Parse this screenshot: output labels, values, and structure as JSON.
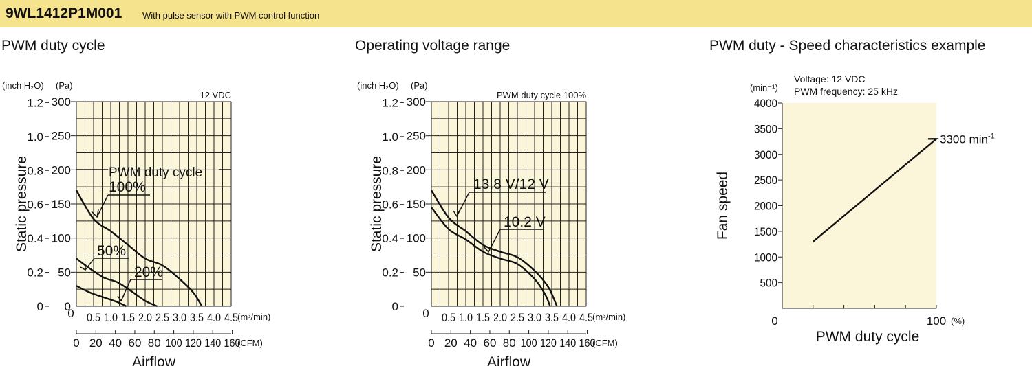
{
  "header": {
    "model": "9WL1412P1M001",
    "description": "With pulse sensor with PWM control function",
    "bg_color": "#f6e38e"
  },
  "chart_data": [
    {
      "type": "line",
      "title": "PWM duty cycle",
      "condition": "12 VDC",
      "ylabel": "Static pressure",
      "xlabel": "Airflow",
      "y_unit_secondary": "(inch H₂O)",
      "y_unit_primary": "(Pa)",
      "x_unit_primary": "(m³/min)",
      "x_unit_secondary": "(CFM)",
      "xlim": [
        0,
        4.5
      ],
      "ylim": [
        0,
        300
      ],
      "x_ticks": [
        "0.5",
        "1.0",
        "1.5",
        "2.0",
        "2.5",
        "3.0",
        "3.5",
        "4.0",
        "4.5"
      ],
      "x_zero_label": "0",
      "y_ticks": [
        "50",
        "100",
        "150",
        "200",
        "250",
        "300"
      ],
      "y_zero_label": "0",
      "y2_ticks": [
        "0",
        "0.2",
        "0.4",
        "0.6",
        "0.8",
        "1.0",
        "1.2"
      ],
      "cfm_ticks": [
        "0",
        "20",
        "40",
        "60",
        "80",
        "100",
        "120",
        "140",
        "160"
      ],
      "legend_title": "PWM duty cycle",
      "series": [
        {
          "name": "100%",
          "x": [
            0,
            0.5,
            1.0,
            1.5,
            2.0,
            2.5,
            3.0,
            3.4,
            3.65
          ],
          "y": [
            170,
            128,
            110,
            90,
            70,
            60,
            40,
            20,
            0
          ]
        },
        {
          "name": "50%",
          "x": [
            0,
            0.4,
            0.8,
            1.2,
            1.6,
            2.0,
            2.35
          ],
          "y": [
            70,
            55,
            42,
            35,
            22,
            8,
            0
          ]
        },
        {
          "name": "20%",
          "x": [
            0,
            0.4,
            0.8,
            1.2,
            1.45
          ],
          "y": [
            30,
            20,
            13,
            6,
            0
          ]
        }
      ]
    },
    {
      "type": "line",
      "title": "Operating voltage range",
      "condition": "PWM duty cycle 100%",
      "ylabel": "Static pressure",
      "xlabel": "Airflow",
      "y_unit_secondary": "(inch H₂O)",
      "y_unit_primary": "(Pa)",
      "x_unit_primary": "(m³/min)",
      "x_unit_secondary": "(CFM)",
      "xlim": [
        0,
        4.5
      ],
      "ylim": [
        0,
        300
      ],
      "x_ticks": [
        "0.5",
        "1.0",
        "1.5",
        "2.0",
        "2.5",
        "3.0",
        "3.5",
        "4.0",
        "4.5"
      ],
      "x_zero_label": "0",
      "y_ticks": [
        "50",
        "100",
        "150",
        "200",
        "250",
        "300"
      ],
      "y_zero_label": "",
      "y2_ticks": [
        "0",
        "0.2",
        "0.4",
        "0.6",
        "0.8",
        "1.0",
        "1.2"
      ],
      "cfm_ticks": [
        "0",
        "20",
        "40",
        "60",
        "80",
        "100",
        "120",
        "140",
        "160"
      ],
      "series": [
        {
          "name": "13.8 V/12 V",
          "x": [
            0,
            0.5,
            1.0,
            1.5,
            2.0,
            2.5,
            3.0,
            3.4,
            3.65
          ],
          "y": [
            170,
            130,
            110,
            90,
            80,
            72,
            52,
            28,
            0
          ]
        },
        {
          "name": "10.2 V",
          "x": [
            0,
            0.5,
            1.0,
            1.5,
            2.0,
            2.5,
            3.0,
            3.3,
            3.45
          ],
          "y": [
            145,
            113,
            98,
            80,
            70,
            62,
            40,
            18,
            0
          ]
        }
      ]
    },
    {
      "type": "line",
      "title": "PWM duty - Speed characteristics example",
      "conditions": [
        "Voltage: 12 VDC",
        "PWM frequency: 25 kHz"
      ],
      "ylabel": "Fan speed",
      "xlabel": "PWM duty cycle",
      "y_unit": "(min⁻¹)",
      "x_unit": "(%)",
      "xlim": [
        0,
        100
      ],
      "ylim": [
        0,
        4000
      ],
      "x_tick_labels": [
        "0",
        "100"
      ],
      "y_ticks": [
        "500",
        "1000",
        "1500",
        "2000",
        "2500",
        "3000",
        "3500",
        "4000"
      ],
      "annotation": "3300 min",
      "annotation_sup": "-1",
      "series": [
        {
          "x": [
            20,
            100
          ],
          "y": [
            1300,
            3300
          ]
        }
      ]
    }
  ]
}
